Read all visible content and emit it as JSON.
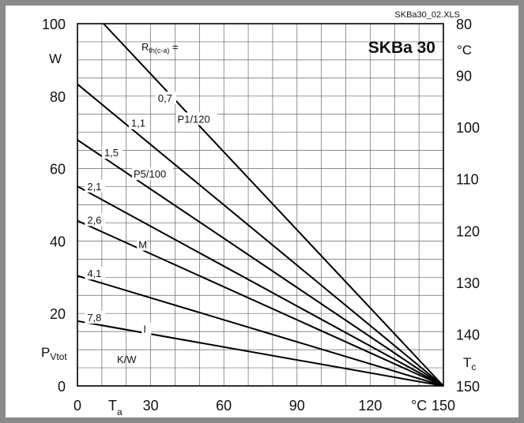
{
  "chart_data": {
    "type": "line",
    "title": "SKBa 30",
    "file_label": "SKBa30_02.XLS",
    "x": {
      "ticks": [
        0,
        30,
        60,
        90,
        120,
        150
      ],
      "range": [
        0,
        150
      ],
      "symbol": "T",
      "symbol_sub": "a",
      "unit": "°C"
    },
    "y_left": {
      "ticks": [
        0,
        20,
        40,
        60,
        80,
        100
      ],
      "range": [
        0,
        100
      ],
      "symbol": "P",
      "symbol_sub": "Vtot",
      "unit": "W"
    },
    "y_right": {
      "ticks": [
        80,
        90,
        100,
        110,
        120,
        130,
        140,
        150
      ],
      "range": [
        150,
        80
      ],
      "symbol": "T",
      "symbol_sub": "c",
      "unit": "°C"
    },
    "legend_header": {
      "main": "R",
      "sub": "th(c-a)",
      "suffix": " ="
    },
    "legend_unit": "K/W",
    "grid": true,
    "series": [
      {
        "rth": "0,7",
        "y_at_x0": 100,
        "points": [
          [
            10.7,
            100
          ],
          [
            150,
            0
          ]
        ]
      },
      {
        "rth": "1,1",
        "y_at_x0": 83.3,
        "points": [
          [
            0,
            83.3
          ],
          [
            150,
            0
          ]
        ]
      },
      {
        "rth": "1,5",
        "y_at_x0": 67.9,
        "points": [
          [
            0,
            67.9
          ],
          [
            150,
            0
          ]
        ]
      },
      {
        "rth": "2,1",
        "y_at_x0": 55.1,
        "points": [
          [
            0,
            55.1
          ],
          [
            150,
            0
          ]
        ]
      },
      {
        "rth": "2,6",
        "y_at_x0": 45.6,
        "points": [
          [
            0,
            45.6
          ],
          [
            150,
            0
          ]
        ]
      },
      {
        "rth": "4,1",
        "y_at_x0": 30.4,
        "points": [
          [
            0,
            30.4
          ],
          [
            150,
            0
          ]
        ]
      },
      {
        "rth": "7,8",
        "y_at_x0": 17.9,
        "points": [
          [
            0,
            17.9
          ],
          [
            150,
            0
          ]
        ]
      }
    ],
    "annotations": [
      "P1/120",
      "P5/100",
      "M",
      "I"
    ]
  }
}
